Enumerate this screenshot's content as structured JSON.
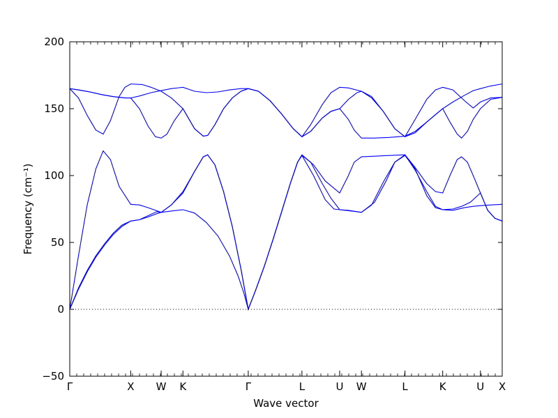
{
  "chart_data": {
    "type": "line",
    "xlabel": "Wave vector",
    "ylabel": "Frequency (cm⁻¹)",
    "ylim": [
      -50,
      200
    ],
    "y_ticks": [
      -50,
      0,
      50,
      100,
      150,
      200
    ],
    "xlim": [
      0,
      14.9
    ],
    "x_ticks": [
      {
        "label": "Γ",
        "x": 0
      },
      {
        "label": "X",
        "x": 2.1
      },
      {
        "label": "W",
        "x": 3.15
      },
      {
        "label": "K",
        "x": 3.9
      },
      {
        "label": "Γ",
        "x": 6.15
      },
      {
        "label": "L",
        "x": 8.0
      },
      {
        "label": "U",
        "x": 9.3
      },
      {
        "label": "W",
        "x": 10.05
      },
      {
        "label": "L",
        "x": 11.55
      },
      {
        "label": "K",
        "x": 12.85
      },
      {
        "label": "U",
        "x": 14.15
      },
      {
        "label": "X",
        "x": 14.9
      }
    ],
    "zero_line": {
      "y": 0,
      "style": "dotted"
    },
    "series": [
      {
        "points": [
          [
            0,
            0
          ],
          [
            0.3,
            15
          ],
          [
            0.6,
            28
          ],
          [
            0.9,
            39
          ],
          [
            1.2,
            48
          ],
          [
            1.5,
            56
          ],
          [
            1.8,
            62
          ],
          [
            2.1,
            66
          ],
          [
            2.4,
            67
          ],
          [
            2.7,
            69
          ],
          [
            3.0,
            71.5
          ],
          [
            3.15,
            72.5
          ],
          [
            3.5,
            73.5
          ],
          [
            3.9,
            74.5
          ],
          [
            4.3,
            72
          ],
          [
            4.7,
            65
          ],
          [
            5.1,
            55
          ],
          [
            5.5,
            40
          ],
          [
            5.8,
            25
          ],
          [
            6.0,
            12
          ],
          [
            6.15,
            0
          ],
          [
            6.4,
            14
          ],
          [
            6.7,
            32
          ],
          [
            7.0,
            52
          ],
          [
            7.3,
            73
          ],
          [
            7.6,
            94
          ],
          [
            7.85,
            110
          ],
          [
            8.0,
            115
          ],
          [
            8.3,
            110
          ],
          [
            8.7,
            94
          ],
          [
            9.0,
            83
          ],
          [
            9.3,
            74.5
          ],
          [
            9.6,
            74
          ],
          [
            10.05,
            72.5
          ],
          [
            10.4,
            78
          ],
          [
            10.8,
            95
          ],
          [
            11.2,
            110
          ],
          [
            11.55,
            115.5
          ],
          [
            11.9,
            104
          ],
          [
            12.3,
            88
          ],
          [
            12.6,
            77
          ],
          [
            12.85,
            74.5
          ],
          [
            13.2,
            75
          ],
          [
            13.5,
            77
          ],
          [
            13.8,
            80
          ],
          [
            14.15,
            87
          ],
          [
            14.4,
            74
          ],
          [
            14.65,
            68
          ],
          [
            14.9,
            66
          ]
        ]
      },
      {
        "points": [
          [
            0,
            0
          ],
          [
            0.3,
            16
          ],
          [
            0.6,
            29
          ],
          [
            0.9,
            40
          ],
          [
            1.2,
            49
          ],
          [
            1.5,
            57
          ],
          [
            1.8,
            63
          ],
          [
            2.1,
            66
          ],
          [
            2.4,
            67
          ],
          [
            2.7,
            70
          ],
          [
            3.0,
            73
          ],
          [
            3.15,
            72.5
          ],
          [
            3.5,
            78
          ],
          [
            3.9,
            88
          ],
          [
            4.3,
            103
          ],
          [
            4.6,
            114
          ],
          [
            4.75,
            115.5
          ],
          [
            5.0,
            108
          ],
          [
            5.3,
            88
          ],
          [
            5.6,
            62
          ],
          [
            5.9,
            30
          ],
          [
            6.15,
            0
          ],
          [
            6.4,
            14
          ],
          [
            6.7,
            32
          ],
          [
            7.0,
            52
          ],
          [
            7.3,
            73
          ],
          [
            7.6,
            94
          ],
          [
            7.85,
            110
          ],
          [
            8.0,
            115
          ],
          [
            8.4,
            100
          ],
          [
            8.8,
            82
          ],
          [
            9.1,
            75
          ],
          [
            9.3,
            74.5
          ],
          [
            9.7,
            73.5
          ],
          [
            10.05,
            72.5
          ],
          [
            10.5,
            80
          ],
          [
            10.9,
            96
          ],
          [
            11.2,
            110
          ],
          [
            11.55,
            115
          ],
          [
            11.9,
            105
          ],
          [
            12.3,
            85
          ],
          [
            12.6,
            76
          ],
          [
            12.85,
            74.5
          ],
          [
            13.2,
            74
          ],
          [
            13.6,
            76
          ],
          [
            13.9,
            77
          ],
          [
            14.15,
            77.5
          ],
          [
            14.5,
            78
          ],
          [
            14.9,
            78.5
          ]
        ]
      },
      {
        "points": [
          [
            0,
            0
          ],
          [
            0.3,
            40
          ],
          [
            0.6,
            78
          ],
          [
            0.9,
            105
          ],
          [
            1.15,
            118.5
          ],
          [
            1.4,
            112
          ],
          [
            1.7,
            92
          ],
          [
            2.1,
            78.5
          ],
          [
            2.4,
            78
          ],
          [
            2.7,
            76
          ],
          [
            3.15,
            72.5
          ],
          [
            3.5,
            78
          ],
          [
            3.9,
            87
          ],
          [
            4.3,
            103
          ],
          [
            4.6,
            114
          ],
          [
            4.75,
            115.5
          ],
          [
            5.0,
            108
          ],
          [
            5.3,
            88
          ],
          [
            5.6,
            62
          ],
          [
            5.9,
            30
          ],
          [
            6.15,
            0
          ],
          [
            6.4,
            14
          ],
          [
            6.7,
            32
          ],
          [
            7.0,
            52
          ],
          [
            7.3,
            73
          ],
          [
            7.6,
            94
          ],
          [
            7.85,
            110
          ],
          [
            8.0,
            115.5
          ],
          [
            8.4,
            108
          ],
          [
            8.8,
            96
          ],
          [
            9.3,
            87
          ],
          [
            9.6,
            100
          ],
          [
            9.8,
            110
          ],
          [
            10.05,
            114
          ],
          [
            10.5,
            114.5
          ],
          [
            11.0,
            115
          ],
          [
            11.55,
            115.5
          ],
          [
            11.9,
            106
          ],
          [
            12.3,
            94
          ],
          [
            12.6,
            88
          ],
          [
            12.85,
            87
          ],
          [
            13.1,
            100
          ],
          [
            13.35,
            112
          ],
          [
            13.5,
            114
          ],
          [
            13.7,
            110
          ],
          [
            13.9,
            100
          ],
          [
            14.15,
            87
          ],
          [
            14.4,
            74
          ],
          [
            14.65,
            68
          ],
          [
            14.9,
            66
          ]
        ]
      },
      {
        "points": [
          [
            0,
            165
          ],
          [
            0.3,
            164
          ],
          [
            0.7,
            162.5
          ],
          [
            1.1,
            160.5
          ],
          [
            1.5,
            159
          ],
          [
            1.9,
            158
          ],
          [
            2.1,
            158
          ],
          [
            2.4,
            159.5
          ],
          [
            2.8,
            162
          ],
          [
            3.15,
            163.5
          ],
          [
            3.5,
            165
          ],
          [
            3.9,
            166
          ],
          [
            4.3,
            163
          ],
          [
            4.7,
            162
          ],
          [
            5.1,
            162.5
          ],
          [
            5.5,
            164
          ],
          [
            5.9,
            165
          ],
          [
            6.15,
            165
          ],
          [
            6.5,
            163
          ],
          [
            6.9,
            156
          ],
          [
            7.3,
            146
          ],
          [
            7.7,
            135
          ],
          [
            8.0,
            129
          ],
          [
            8.3,
            133
          ],
          [
            8.7,
            143
          ],
          [
            9.0,
            148
          ],
          [
            9.3,
            150
          ],
          [
            9.6,
            157
          ],
          [
            9.9,
            162
          ],
          [
            10.05,
            163
          ],
          [
            10.4,
            159
          ],
          [
            10.8,
            148
          ],
          [
            11.2,
            135
          ],
          [
            11.55,
            129
          ],
          [
            11.9,
            132
          ],
          [
            12.3,
            140
          ],
          [
            12.6,
            145.5
          ],
          [
            12.85,
            150
          ],
          [
            13.2,
            155
          ],
          [
            13.6,
            160
          ],
          [
            13.9,
            163.5
          ],
          [
            14.15,
            165
          ],
          [
            14.5,
            167
          ],
          [
            14.9,
            168.5
          ]
        ]
      },
      {
        "points": [
          [
            0,
            165
          ],
          [
            0.3,
            158
          ],
          [
            0.6,
            145
          ],
          [
            0.9,
            134
          ],
          [
            1.15,
            131
          ],
          [
            1.4,
            141
          ],
          [
            1.7,
            159
          ],
          [
            1.9,
            166
          ],
          [
            2.1,
            168.5
          ],
          [
            2.5,
            168
          ],
          [
            2.8,
            166
          ],
          [
            3.15,
            163
          ],
          [
            3.5,
            158
          ],
          [
            3.9,
            150
          ],
          [
            4.3,
            135
          ],
          [
            4.6,
            129.5
          ],
          [
            4.75,
            130
          ],
          [
            5.0,
            138
          ],
          [
            5.3,
            150
          ],
          [
            5.6,
            158
          ],
          [
            5.9,
            163
          ],
          [
            6.15,
            165
          ],
          [
            6.5,
            163
          ],
          [
            6.9,
            156
          ],
          [
            7.3,
            146
          ],
          [
            7.7,
            135
          ],
          [
            8.0,
            129
          ],
          [
            8.3,
            138
          ],
          [
            8.7,
            153
          ],
          [
            9.0,
            162
          ],
          [
            9.3,
            166
          ],
          [
            9.6,
            165.5
          ],
          [
            10.05,
            163
          ],
          [
            10.4,
            158
          ],
          [
            10.8,
            148
          ],
          [
            11.2,
            135
          ],
          [
            11.55,
            129
          ],
          [
            11.9,
            142
          ],
          [
            12.3,
            157
          ],
          [
            12.6,
            164
          ],
          [
            12.85,
            166
          ],
          [
            13.2,
            164
          ],
          [
            13.6,
            156
          ],
          [
            13.9,
            150.5
          ],
          [
            14.15,
            155
          ],
          [
            14.5,
            158
          ],
          [
            14.9,
            158.5
          ]
        ]
      },
      {
        "points": [
          [
            0,
            165
          ],
          [
            0.3,
            164
          ],
          [
            0.7,
            162.5
          ],
          [
            1.1,
            160.5
          ],
          [
            1.5,
            159
          ],
          [
            1.9,
            158
          ],
          [
            2.1,
            158
          ],
          [
            2.4,
            150
          ],
          [
            2.7,
            137
          ],
          [
            2.95,
            129
          ],
          [
            3.15,
            128
          ],
          [
            3.35,
            131
          ],
          [
            3.6,
            141
          ],
          [
            3.9,
            150
          ],
          [
            4.3,
            135
          ],
          [
            4.6,
            129.5
          ],
          [
            4.75,
            130
          ],
          [
            5.0,
            138
          ],
          [
            5.3,
            150
          ],
          [
            5.6,
            158
          ],
          [
            5.9,
            163
          ],
          [
            6.15,
            165
          ],
          [
            6.5,
            163
          ],
          [
            6.9,
            156
          ],
          [
            7.3,
            146
          ],
          [
            7.7,
            135
          ],
          [
            8.0,
            129
          ],
          [
            8.3,
            133
          ],
          [
            8.7,
            143
          ],
          [
            9.0,
            148
          ],
          [
            9.3,
            150
          ],
          [
            9.6,
            142
          ],
          [
            9.8,
            134
          ],
          [
            10.05,
            128
          ],
          [
            10.5,
            128
          ],
          [
            11.0,
            128.5
          ],
          [
            11.55,
            129.5
          ],
          [
            11.9,
            133
          ],
          [
            12.3,
            140
          ],
          [
            12.6,
            145.5
          ],
          [
            12.85,
            150
          ],
          [
            13.1,
            140
          ],
          [
            13.35,
            131
          ],
          [
            13.5,
            128
          ],
          [
            13.7,
            133
          ],
          [
            13.9,
            142
          ],
          [
            14.15,
            150
          ],
          [
            14.5,
            157
          ],
          [
            14.9,
            158.5
          ]
        ]
      }
    ]
  }
}
